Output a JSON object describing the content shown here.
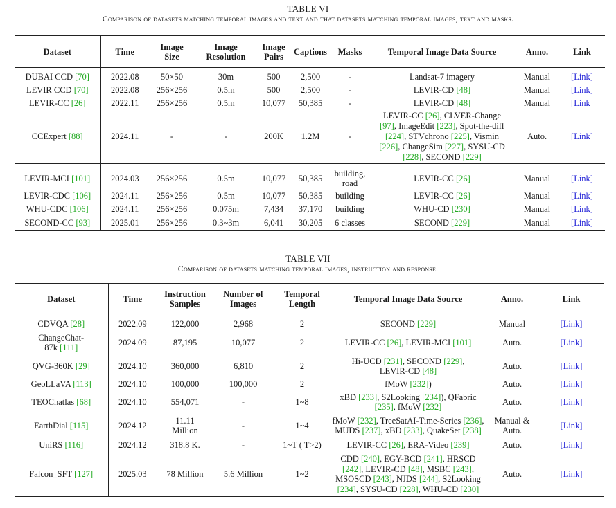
{
  "table6": {
    "number": "TABLE VI",
    "caption": "Comparison of datasets matching temporal images and text and that datasets matching temporal images, text and masks.",
    "headers": {
      "dataset": "Dataset",
      "time": "Time",
      "image_size_1": "Image",
      "image_size_2": "Size",
      "image_res_1": "Image",
      "image_res_2": "Resolution",
      "image_pairs_1": "Image",
      "image_pairs_2": "Pairs",
      "captions": "Captions",
      "masks": "Masks",
      "source": "Temporal Image Data Source",
      "anno": "Anno.",
      "link": "Link"
    },
    "rows": [
      {
        "name": "DUBAI CCD",
        "ref": "[70]",
        "time": "2022.08",
        "size": "50×50",
        "res": "30m",
        "pairs": "500",
        "captions": "2,500",
        "masks": "-",
        "anno": "Manual",
        "link": "[Link]"
      },
      {
        "name": "LEVIR CCD",
        "ref": "[70]",
        "time": "2022.08",
        "size": "256×256",
        "res": "0.5m",
        "pairs": "500",
        "captions": "2,500",
        "masks": "-",
        "anno": "Manual",
        "link": "[Link]"
      },
      {
        "name": "LEVIR-CC",
        "ref": "[26]",
        "time": "2022.11",
        "size": "256×256",
        "res": "0.5m",
        "pairs": "10,077",
        "captions": "50,385",
        "masks": "-",
        "anno": "Manual",
        "link": "[Link]"
      },
      {
        "name": "CCExpert",
        "ref": "[88]",
        "time": "2024.11",
        "size": "-",
        "res": "-",
        "pairs": "200K",
        "captions": "1.2M",
        "masks": "-",
        "anno": "Auto.",
        "link": "[Link]"
      },
      {
        "name": "LEVIR-MCI",
        "ref": "[101]",
        "time": "2024.03",
        "size": "256×256",
        "res": "0.5m",
        "pairs": "10,077",
        "captions": "50,385",
        "masks": "building, road",
        "anno": "Manual",
        "link": "[Link]"
      },
      {
        "name": "LEVIR-CDC",
        "ref": "[106]",
        "time": "2024.11",
        "size": "256×256",
        "res": "0.5m",
        "pairs": "10,077",
        "captions": "50,385",
        "masks": "building",
        "anno": "Manual",
        "link": "[Link]"
      },
      {
        "name": "WHU-CDC",
        "ref": "[106]",
        "time": "2024.11",
        "size": "256×256",
        "res": "0.075m",
        "pairs": "7,434",
        "captions": "37,170",
        "masks": "building",
        "anno": "Manual",
        "link": "[Link]"
      },
      {
        "name": "SECOND-CC",
        "ref": "[93]",
        "time": "2025.01",
        "size": "256×256",
        "res": "0.3~3m",
        "pairs": "6,041",
        "captions": "30,205",
        "masks": "6 classes",
        "anno": "Manual",
        "link": "[Link]"
      }
    ],
    "sources": {
      "r0": "Landsat-7 imagery",
      "r1_text": "LEVIR-CD ",
      "r1_ref": "[48]",
      "r2_text": "LEVIR-CD ",
      "r2_ref": "[48]",
      "r3_l1a": "LEVIR-CC ",
      "r3_l1a_ref": "[26]",
      "r3_l1b": ", CLVER-Change",
      "r3_l2a_ref": "[97]",
      "r3_l2b": ", ImageEdit ",
      "r3_l2b_ref": "[223]",
      "r3_l2c": ", Spot-the-diff",
      "r3_l3a_ref": "[224]",
      "r3_l3b": ", STVchrono ",
      "r3_l3b_ref": "[225]",
      "r3_l3c": ", Vismin",
      "r3_l4a_ref": "[226]",
      "r3_l4b": ", ChangeSim ",
      "r3_l4b_ref": "[227]",
      "r3_l4c": ", SYSU-CD",
      "r3_l5a_ref": "[228]",
      "r3_l5b": ", SECOND ",
      "r3_l5b_ref": "[229]",
      "r4_text": "LEVIR-CC ",
      "r4_ref": "[26]",
      "r5_text": "LEVIR-CC ",
      "r5_ref": "[26]",
      "r6_text": "WHU-CD ",
      "r6_ref": "[230]",
      "r7_text": "SECOND ",
      "r7_ref": "[229]"
    }
  },
  "table7": {
    "number": "TABLE VII",
    "caption": "Comparison of datasets matching temporal images, instruction and response.",
    "headers": {
      "dataset": "Dataset",
      "time": "Time",
      "instr_1": "Instruction",
      "instr_2": "Samples",
      "nimg_1": "Number of",
      "nimg_2": "Images",
      "tlen_1": "Temporal",
      "tlen_2": "Length",
      "source": "Temporal Image Data Source",
      "anno": "Anno.",
      "link": "Link"
    },
    "rows": [
      {
        "name": "CDVQA ",
        "ref": "[28]",
        "time": "2022.09",
        "instr": "122,000",
        "nimg": "2,968",
        "tlen": "2",
        "anno": "Manual",
        "link": "[Link]"
      },
      {
        "name_l1": "ChangeChat-",
        "name_l2": "87k ",
        "ref": "[111]",
        "time": "2024.09",
        "instr": "87,195",
        "nimg": "10,077",
        "tlen": "2",
        "anno": "Auto.",
        "link": "[Link]"
      },
      {
        "name": "QVG-360K ",
        "ref": "[29]",
        "time": "2024.10",
        "instr": "360,000",
        "nimg": "6,810",
        "tlen": "2",
        "anno": "Auto.",
        "link": "[Link]"
      },
      {
        "name": "GeoLLaVA ",
        "ref": "[113]",
        "time": "2024.10",
        "instr": "100,000",
        "nimg": "100,000",
        "tlen": "2",
        "anno": "Auto.",
        "link": "[Link]"
      },
      {
        "name": "TEOChatlas ",
        "ref": "[68]",
        "time": "2024.10",
        "instr": "554,071",
        "nimg": "-",
        "tlen": "1~8",
        "anno": "Auto.",
        "link": "[Link]"
      },
      {
        "name": "EarthDial ",
        "ref": "[115]",
        "time": "2024.12",
        "instr_l1": "11.11",
        "instr_l2": "Million",
        "nimg": "-",
        "tlen": "1~4",
        "anno_l1": "Manual &",
        "anno_l2": "Auto.",
        "link": "[Link]"
      },
      {
        "name": "UniRS ",
        "ref": "[116]",
        "time": "2024.12",
        "instr": "318.8 K.",
        "nimg": "-",
        "tlen": "1~T ( T>2)",
        "anno": "Auto.",
        "link": "[Link]"
      },
      {
        "name": "Falcon_SFT ",
        "ref": "[127]",
        "time": "2025.03",
        "instr": "78 Million",
        "nimg": "5.6 Million",
        "tlen": "1~2",
        "anno": "Auto.",
        "link": "[Link]"
      }
    ],
    "sources": {
      "s0_text": "SECOND ",
      "s0_ref": "[229]",
      "s1_a": "LEVIR-CC ",
      "s1_a_ref": "[26]",
      "s1_b": ", LEVIR-MCI ",
      "s1_b_ref": "[101]",
      "s2_l1a": "Hi-UCD ",
      "s2_l1a_ref": "[231]",
      "s2_l1b": ", SECOND ",
      "s2_l1b_ref": "[229]",
      "s2_l1c": ",",
      "s2_l2": "LEVIR-CD ",
      "s2_l2_ref": "[48]",
      "s3_text": "fMoW ",
      "s3_ref": "[232]",
      "s3_tail": ")",
      "s4_l1a": "xBD ",
      "s4_l1a_ref": "[233]",
      "s4_l1b": ", S2Looking ",
      "s4_l1b_ref": "[234]",
      "s4_l1c": "), QFabric",
      "s4_l2a_ref": "[235]",
      "s4_l2b": ", fMoW ",
      "s4_l2b_ref": "[232]",
      "s5_l1a": "fMoW ",
      "s5_l1a_ref": "[232]",
      "s5_l1b": ", TreeSatAI-Time-Series ",
      "s5_l1b_ref": "[236]",
      "s5_l1c": ",",
      "s5_l2a": "MUDS ",
      "s5_l2a_ref": "[237]",
      "s5_l2b": ", xBD ",
      "s5_l2b_ref": "[233]",
      "s5_l2c": ", QuakeSet ",
      "s5_l2c_ref": "[238]",
      "s6_a": "LEVIR-CC ",
      "s6_a_ref": "[26]",
      "s6_b": ", ERA-Video ",
      "s6_b_ref": "[239]",
      "s7_l1a": "CDD ",
      "s7_l1a_ref": "[240]",
      "s7_l1b": ", EGY-BCD ",
      "s7_l1b_ref": "[241]",
      "s7_l1c": ", HRSCD",
      "s7_l2a_ref": "[242]",
      "s7_l2b": ", LEVIR-CD ",
      "s7_l2b_ref": "[48]",
      "s7_l2c": ", MSBC ",
      "s7_l2c_ref": "[243]",
      "s7_l2d": ",",
      "s7_l3a": "MSOSCD ",
      "s7_l3a_ref": "[243]",
      "s7_l3b": ", NJDS ",
      "s7_l3b_ref": "[244]",
      "s7_l3c": ", S2Looking",
      "s7_l4a_ref": "[234]",
      "s7_l4b": ", SYSU-CD ",
      "s7_l4b_ref": "[228]",
      "s7_l4c": ", WHU-CD ",
      "s7_l4c_ref": "[230]"
    }
  }
}
